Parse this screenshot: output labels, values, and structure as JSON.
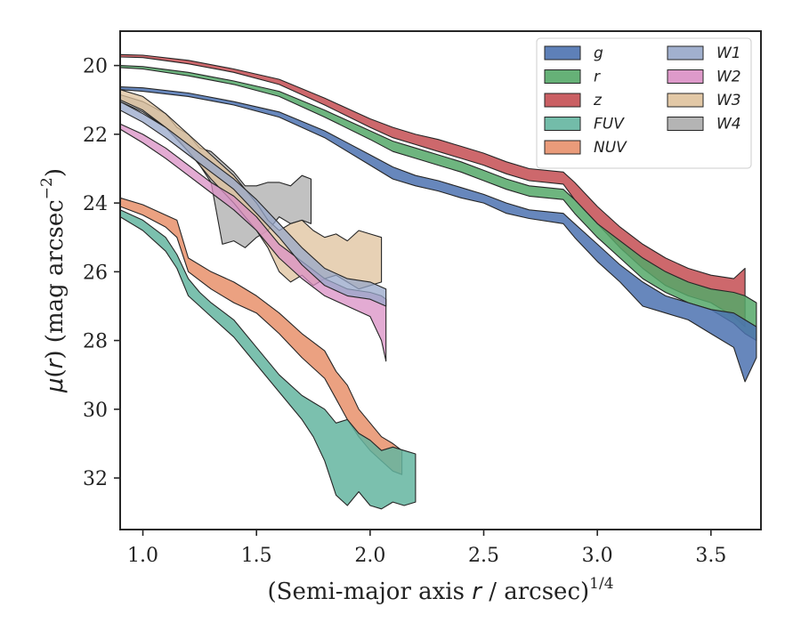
{
  "chart_data": {
    "type": "area",
    "xlabel": "(Semi-major axis r / arcsec)",
    "xlabel_parts": {
      "pre": "(Semi-major axis ",
      "var": "r",
      "post": " / arcsec)",
      "sup": "1/4"
    },
    "ylabel": "μ(r) (mag arcsec⁻²)",
    "ylabel_parts": {
      "mu": "μ",
      "open": "(",
      "var": "r",
      "close": ")",
      "unit": " (mag arcsec",
      "sup": "−2",
      "end": ")"
    },
    "xlim": [
      0.9,
      3.72
    ],
    "ylim": [
      33.5,
      19.0
    ],
    "y_inverted": true,
    "xticks": [
      1.0,
      1.5,
      2.0,
      2.5,
      3.0,
      3.5
    ],
    "xtick_labels": [
      "1.0",
      "1.5",
      "2.0",
      "2.5",
      "3.0",
      "3.5"
    ],
    "yticks": [
      20,
      22,
      24,
      26,
      28,
      30,
      32
    ],
    "ytick_labels": [
      "20",
      "22",
      "24",
      "26",
      "28",
      "30",
      "32"
    ],
    "grid": false,
    "legend_position": "top-right",
    "legend_columns": 2,
    "series": [
      {
        "name": "g",
        "color": "#4c72b0",
        "points": [
          [
            0.9,
            20.62,
            20.7
          ],
          [
            1.0,
            20.65,
            20.75
          ],
          [
            1.2,
            20.8,
            20.9
          ],
          [
            1.4,
            21.05,
            21.15
          ],
          [
            1.6,
            21.35,
            21.5
          ],
          [
            1.8,
            21.9,
            22.1
          ],
          [
            2.0,
            22.6,
            22.9
          ],
          [
            2.1,
            22.95,
            23.3
          ],
          [
            2.2,
            23.2,
            23.5
          ],
          [
            2.3,
            23.35,
            23.65
          ],
          [
            2.4,
            23.55,
            23.85
          ],
          [
            2.5,
            23.75,
            24.0
          ],
          [
            2.6,
            24.0,
            24.3
          ],
          [
            2.7,
            24.2,
            24.45
          ],
          [
            2.85,
            24.3,
            24.6
          ],
          [
            2.9,
            24.6,
            25.0
          ],
          [
            3.0,
            25.2,
            25.7
          ],
          [
            3.1,
            25.8,
            26.3
          ],
          [
            3.2,
            26.3,
            27.0
          ],
          [
            3.3,
            26.7,
            27.2
          ],
          [
            3.4,
            26.9,
            27.4
          ],
          [
            3.5,
            27.1,
            27.8
          ],
          [
            3.6,
            27.2,
            28.2
          ],
          [
            3.65,
            27.4,
            29.2
          ],
          [
            3.7,
            27.6,
            28.5
          ]
        ]
      },
      {
        "name": "r",
        "color": "#55a868",
        "points": [
          [
            0.9,
            20.0,
            20.06
          ],
          [
            1.0,
            20.03,
            20.1
          ],
          [
            1.2,
            20.2,
            20.3
          ],
          [
            1.4,
            20.45,
            20.55
          ],
          [
            1.6,
            20.75,
            20.9
          ],
          [
            1.8,
            21.3,
            21.5
          ],
          [
            2.0,
            21.9,
            22.15
          ],
          [
            2.1,
            22.2,
            22.5
          ],
          [
            2.2,
            22.4,
            22.7
          ],
          [
            2.3,
            22.6,
            22.9
          ],
          [
            2.4,
            22.8,
            23.1
          ],
          [
            2.5,
            23.05,
            23.35
          ],
          [
            2.6,
            23.3,
            23.6
          ],
          [
            2.7,
            23.5,
            23.8
          ],
          [
            2.85,
            23.6,
            23.9
          ],
          [
            2.9,
            23.9,
            24.3
          ],
          [
            3.0,
            24.6,
            25.0
          ],
          [
            3.1,
            25.1,
            25.6
          ],
          [
            3.2,
            25.6,
            26.2
          ],
          [
            3.3,
            26.0,
            26.6
          ],
          [
            3.4,
            26.3,
            26.9
          ],
          [
            3.5,
            26.5,
            27.1
          ],
          [
            3.6,
            26.6,
            27.5
          ],
          [
            3.65,
            26.7,
            27.8
          ],
          [
            3.7,
            26.9,
            28.0
          ]
        ]
      },
      {
        "name": "z",
        "color": "#c44e52",
        "points": [
          [
            0.9,
            19.68,
            19.75
          ],
          [
            1.0,
            19.7,
            19.77
          ],
          [
            1.2,
            19.85,
            19.95
          ],
          [
            1.4,
            20.1,
            20.2
          ],
          [
            1.6,
            20.4,
            20.55
          ],
          [
            1.8,
            20.95,
            21.15
          ],
          [
            2.0,
            21.55,
            21.8
          ],
          [
            2.1,
            21.8,
            22.1
          ],
          [
            2.2,
            22.0,
            22.3
          ],
          [
            2.3,
            22.15,
            22.5
          ],
          [
            2.4,
            22.35,
            22.7
          ],
          [
            2.5,
            22.55,
            22.9
          ],
          [
            2.6,
            22.8,
            23.15
          ],
          [
            2.7,
            23.0,
            23.35
          ],
          [
            2.85,
            23.1,
            23.45
          ],
          [
            2.9,
            23.4,
            23.9
          ],
          [
            3.0,
            24.1,
            24.6
          ],
          [
            3.1,
            24.7,
            25.3
          ],
          [
            3.2,
            25.2,
            25.9
          ],
          [
            3.3,
            25.6,
            26.4
          ],
          [
            3.4,
            25.9,
            26.7
          ],
          [
            3.5,
            26.1,
            26.9
          ],
          [
            3.6,
            26.2,
            27.3
          ],
          [
            3.65,
            25.9,
            27.6
          ]
        ]
      },
      {
        "name": "FUV",
        "color": "#64b5a0",
        "points": [
          [
            0.9,
            24.2,
            24.4
          ],
          [
            1.0,
            24.5,
            24.8
          ],
          [
            1.1,
            25.0,
            25.4
          ],
          [
            1.15,
            25.5,
            25.9
          ],
          [
            1.2,
            26.2,
            26.7
          ],
          [
            1.25,
            26.6,
            27.0
          ],
          [
            1.3,
            26.9,
            27.3
          ],
          [
            1.4,
            27.4,
            27.9
          ],
          [
            1.5,
            28.2,
            28.7
          ],
          [
            1.6,
            29.0,
            29.5
          ],
          [
            1.7,
            29.6,
            30.3
          ],
          [
            1.75,
            29.8,
            30.8
          ],
          [
            1.8,
            30.0,
            31.5
          ],
          [
            1.85,
            30.4,
            32.5
          ],
          [
            1.9,
            30.3,
            32.8
          ],
          [
            1.95,
            30.7,
            32.4
          ],
          [
            2.0,
            30.9,
            32.8
          ],
          [
            2.05,
            31.2,
            32.9
          ],
          [
            2.1,
            31.1,
            32.7
          ],
          [
            2.15,
            31.2,
            32.8
          ],
          [
            2.2,
            31.3,
            32.7
          ]
        ]
      },
      {
        "name": "NUV",
        "color": "#e8906b",
        "points": [
          [
            0.9,
            23.85,
            24.1
          ],
          [
            1.0,
            24.05,
            24.35
          ],
          [
            1.1,
            24.35,
            24.7
          ],
          [
            1.15,
            24.5,
            25.0
          ],
          [
            1.2,
            25.6,
            26.0
          ],
          [
            1.3,
            26.0,
            26.5
          ],
          [
            1.4,
            26.3,
            26.9
          ],
          [
            1.5,
            26.7,
            27.2
          ],
          [
            1.6,
            27.2,
            27.8
          ],
          [
            1.7,
            27.8,
            28.5
          ],
          [
            1.8,
            28.3,
            29.1
          ],
          [
            1.85,
            28.9,
            29.7
          ],
          [
            1.9,
            29.3,
            30.3
          ],
          [
            1.95,
            30.0,
            30.8
          ],
          [
            2.0,
            30.4,
            31.2
          ],
          [
            2.05,
            30.8,
            31.5
          ],
          [
            2.1,
            31.0,
            31.8
          ],
          [
            2.14,
            31.2,
            31.9
          ]
        ]
      },
      {
        "name": "W1",
        "color": "#97a7c9",
        "points": [
          [
            0.9,
            21.05,
            21.3
          ],
          [
            1.0,
            21.4,
            21.65
          ],
          [
            1.1,
            21.8,
            22.1
          ],
          [
            1.2,
            22.3,
            22.6
          ],
          [
            1.3,
            22.8,
            23.1
          ],
          [
            1.4,
            23.3,
            23.6
          ],
          [
            1.5,
            23.9,
            24.3
          ],
          [
            1.6,
            24.6,
            25.0
          ],
          [
            1.7,
            25.3,
            25.8
          ],
          [
            1.8,
            25.9,
            26.4
          ],
          [
            1.9,
            26.2,
            26.7
          ],
          [
            2.0,
            26.3,
            26.8
          ],
          [
            2.07,
            26.5,
            27.0
          ]
        ]
      },
      {
        "name": "W2",
        "color": "#da8fc4",
        "points": [
          [
            0.9,
            21.7,
            21.85
          ],
          [
            1.0,
            22.0,
            22.25
          ],
          [
            1.1,
            22.4,
            22.7
          ],
          [
            1.2,
            22.9,
            23.2
          ],
          [
            1.3,
            23.4,
            23.7
          ],
          [
            1.4,
            23.8,
            24.2
          ],
          [
            1.5,
            24.4,
            24.8
          ],
          [
            1.6,
            25.2,
            25.6
          ],
          [
            1.7,
            25.7,
            26.2
          ],
          [
            1.8,
            26.2,
            26.7
          ],
          [
            1.9,
            26.5,
            27.0
          ],
          [
            2.0,
            26.6,
            27.3
          ],
          [
            2.05,
            26.7,
            28.0
          ],
          [
            2.07,
            26.8,
            28.6
          ]
        ]
      },
      {
        "name": "W3",
        "color": "#dfc29c",
        "points": [
          [
            0.9,
            20.7,
            21.0
          ],
          [
            1.0,
            20.9,
            21.3
          ],
          [
            1.1,
            21.4,
            21.8
          ],
          [
            1.2,
            22.0,
            22.5
          ],
          [
            1.3,
            22.6,
            23.3
          ],
          [
            1.4,
            23.2,
            24.0
          ],
          [
            1.5,
            24.0,
            24.8
          ],
          [
            1.55,
            24.5,
            25.3
          ],
          [
            1.6,
            24.8,
            26.0
          ],
          [
            1.65,
            24.6,
            26.3
          ],
          [
            1.7,
            24.5,
            26.1
          ],
          [
            1.75,
            24.8,
            26.4
          ],
          [
            1.8,
            25.0,
            26.2
          ],
          [
            1.85,
            24.9,
            26.1
          ],
          [
            1.9,
            25.1,
            26.3
          ],
          [
            1.95,
            24.8,
            26.5
          ],
          [
            2.0,
            24.9,
            26.4
          ],
          [
            2.05,
            25.0,
            26.3
          ]
        ]
      },
      {
        "name": "W4",
        "color": "#acacac",
        "points": [
          [
            0.9,
            20.85,
            21.05
          ],
          [
            1.0,
            21.05,
            21.35
          ],
          [
            1.1,
            21.4,
            21.8
          ],
          [
            1.15,
            21.8,
            22.1
          ],
          [
            1.2,
            22.0,
            22.5
          ],
          [
            1.25,
            22.4,
            22.9
          ],
          [
            1.3,
            22.5,
            23.4
          ],
          [
            1.35,
            22.8,
            25.2
          ],
          [
            1.4,
            23.1,
            25.1
          ],
          [
            1.45,
            23.5,
            25.3
          ],
          [
            1.5,
            23.5,
            25.0
          ],
          [
            1.55,
            23.4,
            24.8
          ],
          [
            1.6,
            23.4,
            24.4
          ],
          [
            1.65,
            23.5,
            24.6
          ],
          [
            1.7,
            23.2,
            24.5
          ],
          [
            1.74,
            23.3,
            24.6
          ]
        ]
      }
    ]
  }
}
